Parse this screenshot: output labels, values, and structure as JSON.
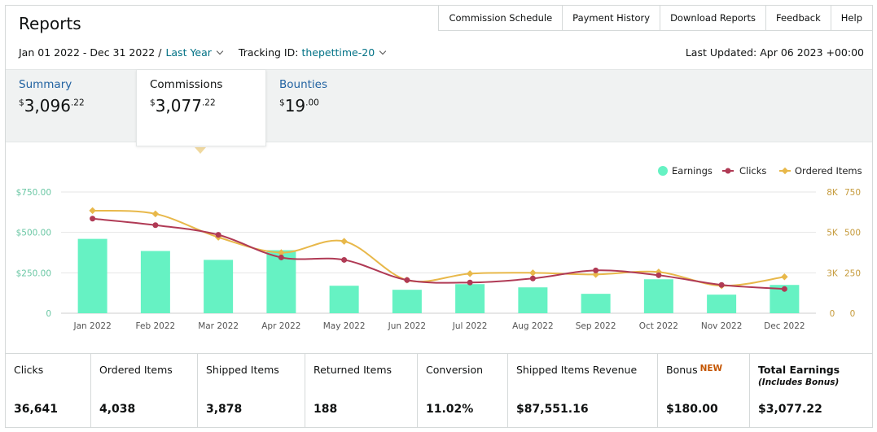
{
  "header": {
    "title": "Reports",
    "nav": [
      "Commission Schedule",
      "Payment History",
      "Download Reports",
      "Feedback",
      "Help"
    ]
  },
  "filters": {
    "date_range": "Jan 01 2022 - Dec 31 2022 /",
    "period": "Last Year",
    "tracking_label": "Tracking ID:",
    "tracking_id": "thepettime-20",
    "last_updated": "Last Updated: Apr 06 2023 +00:00"
  },
  "tabs": {
    "summary": {
      "label": "Summary",
      "currency": "$",
      "whole": "3,096",
      "cents": ".22"
    },
    "commissions": {
      "label": "Commissions",
      "currency": "$",
      "whole": "3,077",
      "cents": ".22"
    },
    "bounties": {
      "label": "Bounties",
      "currency": "$",
      "whole": "19",
      "cents": ".00"
    },
    "selected": "Commissions"
  },
  "colors": {
    "earnings": "#66f2c3",
    "clicks": "#b03a55",
    "ordered_items": "#e8b84a",
    "left_axis_text": "#6ac7a4",
    "right_axis_text": "#c59a3a",
    "link": "#007185",
    "new_badge": "#c45500"
  },
  "chart_data": {
    "type": "bar",
    "categories": [
      "Jan 2022",
      "Feb 2022",
      "Mar 2022",
      "Apr 2022",
      "May 2022",
      "Jun 2022",
      "Jul 2022",
      "Aug 2022",
      "Sep 2022",
      "Oct 2022",
      "Nov 2022",
      "Dec 2022"
    ],
    "legend": [
      "Earnings",
      "Clicks",
      "Ordered Items"
    ],
    "legend_position": "top-right",
    "left_axis": {
      "ticks": [
        "$750.00",
        "$500.00",
        "$250.00",
        "0"
      ],
      "range": [
        0,
        750
      ]
    },
    "right_axis_clicks": {
      "ticks": [
        "8K",
        "5K",
        "3K",
        "0"
      ],
      "range": [
        0,
        7500
      ]
    },
    "right_axis_items": {
      "ticks": [
        "750",
        "500",
        "250",
        "0"
      ],
      "range": [
        0,
        750
      ]
    },
    "series": [
      {
        "name": "Earnings",
        "type": "bar",
        "values": [
          460,
          385,
          330,
          390,
          170,
          145,
          180,
          160,
          120,
          210,
          115,
          175
        ]
      },
      {
        "name": "Clicks",
        "type": "line",
        "values": [
          5850,
          5450,
          4850,
          3450,
          3300,
          2050,
          1900,
          2150,
          2650,
          2350,
          1750,
          1500
        ]
      },
      {
        "name": "Ordered Items",
        "type": "line",
        "values": [
          635,
          615,
          470,
          375,
          445,
          205,
          245,
          250,
          240,
          255,
          170,
          225
        ]
      }
    ],
    "grid": true
  },
  "stats": [
    {
      "label": "Clicks",
      "value": "36,641"
    },
    {
      "label": "Ordered Items",
      "value": "4,038"
    },
    {
      "label": "Shipped Items",
      "value": "3,878"
    },
    {
      "label": "Returned Items",
      "value": "188"
    },
    {
      "label": "Conversion",
      "value": "11.02%"
    },
    {
      "label": "Shipped Items Revenue",
      "value": "$87,551.16"
    },
    {
      "label": "Bonus",
      "badge": "NEW",
      "value": "$180.00"
    },
    {
      "label": "Total Earnings",
      "sub": "(Includes Bonus)",
      "value": "$3,077.22"
    }
  ]
}
